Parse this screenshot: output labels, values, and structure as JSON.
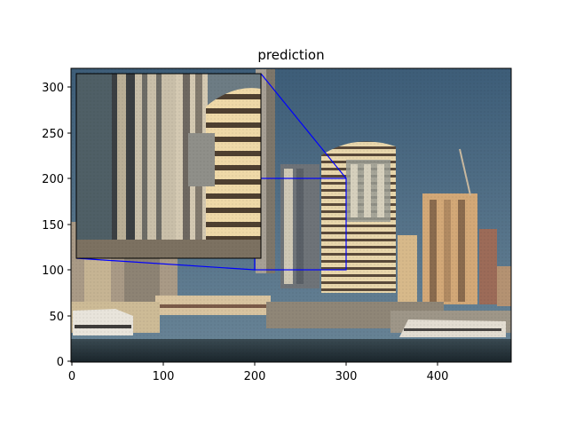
{
  "figure": {
    "title": "prediction",
    "x_ticks": [
      "0",
      "100",
      "200",
      "300",
      "400"
    ],
    "y_ticks": [
      "0",
      "50",
      "100",
      "150",
      "200",
      "250",
      "300"
    ]
  },
  "image": {
    "description_key": "harbor-city-skyline",
    "sky_color": "#4d6f86",
    "water_color": "#24323a",
    "building_colors": [
      "#e4cf9c",
      "#b9a27a",
      "#8f8a7d",
      "#d9b78c",
      "#6d7a84"
    ]
  },
  "zoom": {
    "inset_frame_color": "#0000ff",
    "source_x_range": [
      200,
      300
    ],
    "source_y_range": [
      100,
      200
    ]
  }
}
